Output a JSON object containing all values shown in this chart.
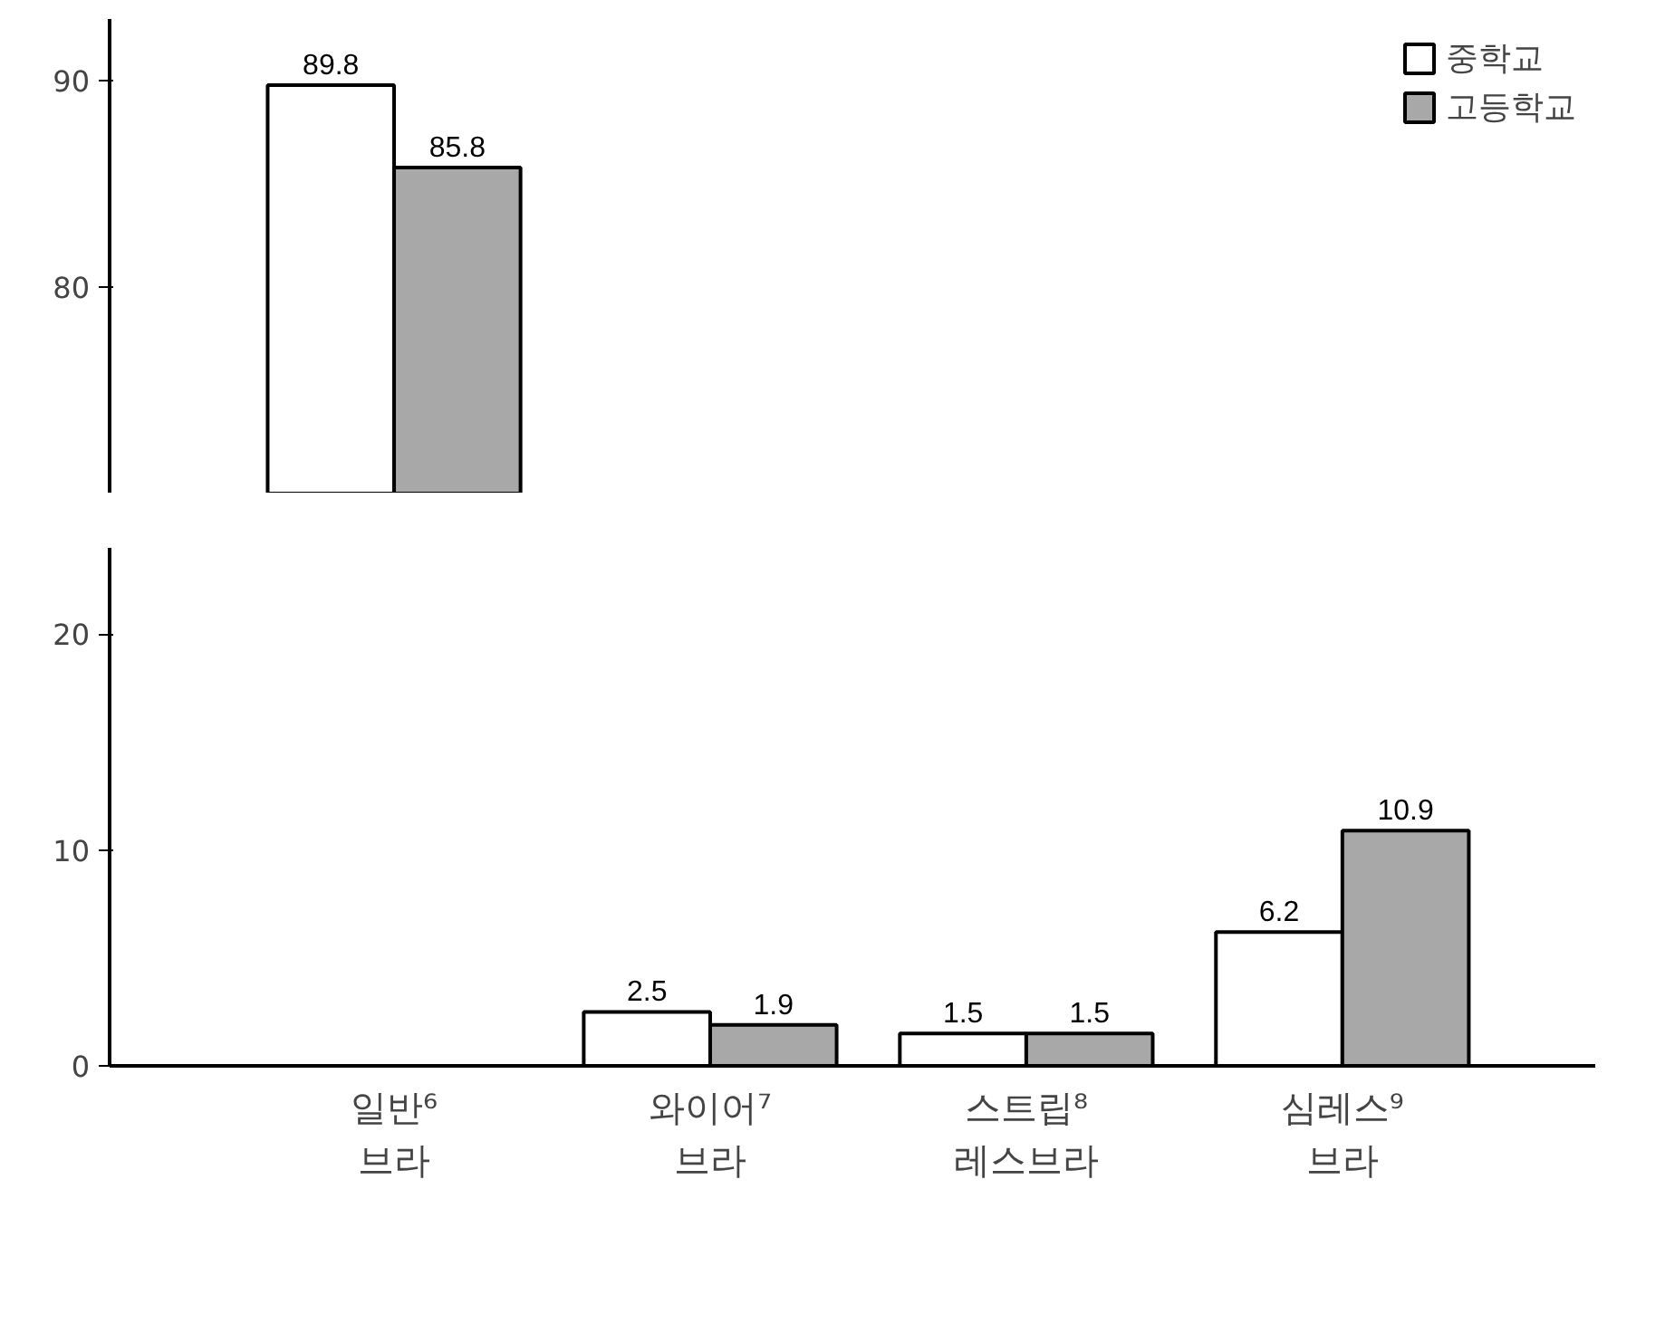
{
  "chart_data": [
    {
      "type": "bar",
      "categories": [
        null
      ],
      "ylim": [
        70,
        93
      ],
      "yticks": [
        80,
        90
      ],
      "tick_labels": "y",
      "grid": false,
      "legend": "top right",
      "data_labels": true,
      "series": [
        {
          "name": "중학교",
          "color": "#ffffff",
          "values": [
            89.8
          ]
        },
        {
          "name": "고등학교",
          "color": "#a8a8a8",
          "values": [
            85.8
          ]
        }
      ]
    },
    {
      "type": "bar",
      "categories": [
        "일반⁶\n브라",
        "와이어⁷\n브라",
        "스트립⁸\n레스브라",
        "심레스⁹\n브라"
      ],
      "ylim": [
        0,
        24
      ],
      "yticks": [
        0,
        10,
        20
      ],
      "grid": false,
      "legend": false,
      "data_labels": true,
      "series": [
        {
          "color": "#ffffff",
          "values": [
            null,
            2.5,
            1.5,
            6.2
          ]
        },
        {
          "color": "#a8a8a8",
          "values": [
            null,
            1.9,
            1.5,
            10.9
          ]
        }
      ]
    }
  ]
}
